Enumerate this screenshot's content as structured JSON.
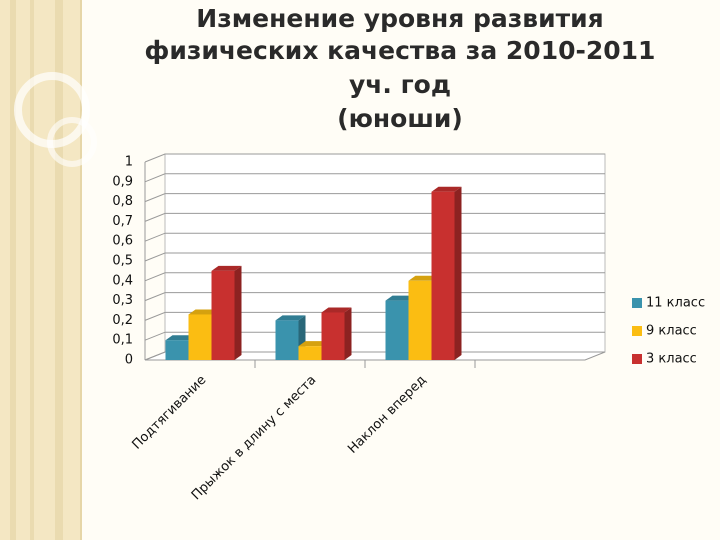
{
  "chart_data": {
    "type": "bar3d",
    "title": [
      "Изменение уровня развития",
      "физических качества за 2010-2011",
      "уч. год",
      "(юноши)"
    ],
    "categories": [
      "Подтягивание",
      "Прыжок в длину с места",
      "Наклон вперед",
      null
    ],
    "series": [
      {
        "name": "11 класс",
        "color": "#3a93ad",
        "values": [
          0.1,
          0.2,
          0.3,
          null
        ]
      },
      {
        "name": "9 класс",
        "color": "#fbbd12",
        "values": [
          0.23,
          0.07,
          0.4,
          null
        ]
      },
      {
        "name": "3 класс",
        "color": "#c8302f",
        "values": [
          0.45,
          0.24,
          0.85,
          null
        ]
      }
    ],
    "ylim": [
      0,
      1
    ],
    "yticks": [
      0,
      {
        "value": 0.1,
        "label": "0,1"
      },
      {
        "value": 0.2,
        "label": "0,2"
      },
      {
        "value": 0.3,
        "label": "0,3"
      },
      {
        "value": 0.4,
        "label": "0,4"
      },
      {
        "value": 0.5,
        "label": "0,5"
      },
      {
        "value": 0.6,
        "label": "0,6"
      },
      {
        "value": 0.7,
        "label": "0,7"
      },
      {
        "value": 0.8,
        "label": "0,8"
      },
      {
        "value": 0.9,
        "label": "0,9"
      },
      1
    ],
    "grid": true,
    "legend": "right"
  }
}
